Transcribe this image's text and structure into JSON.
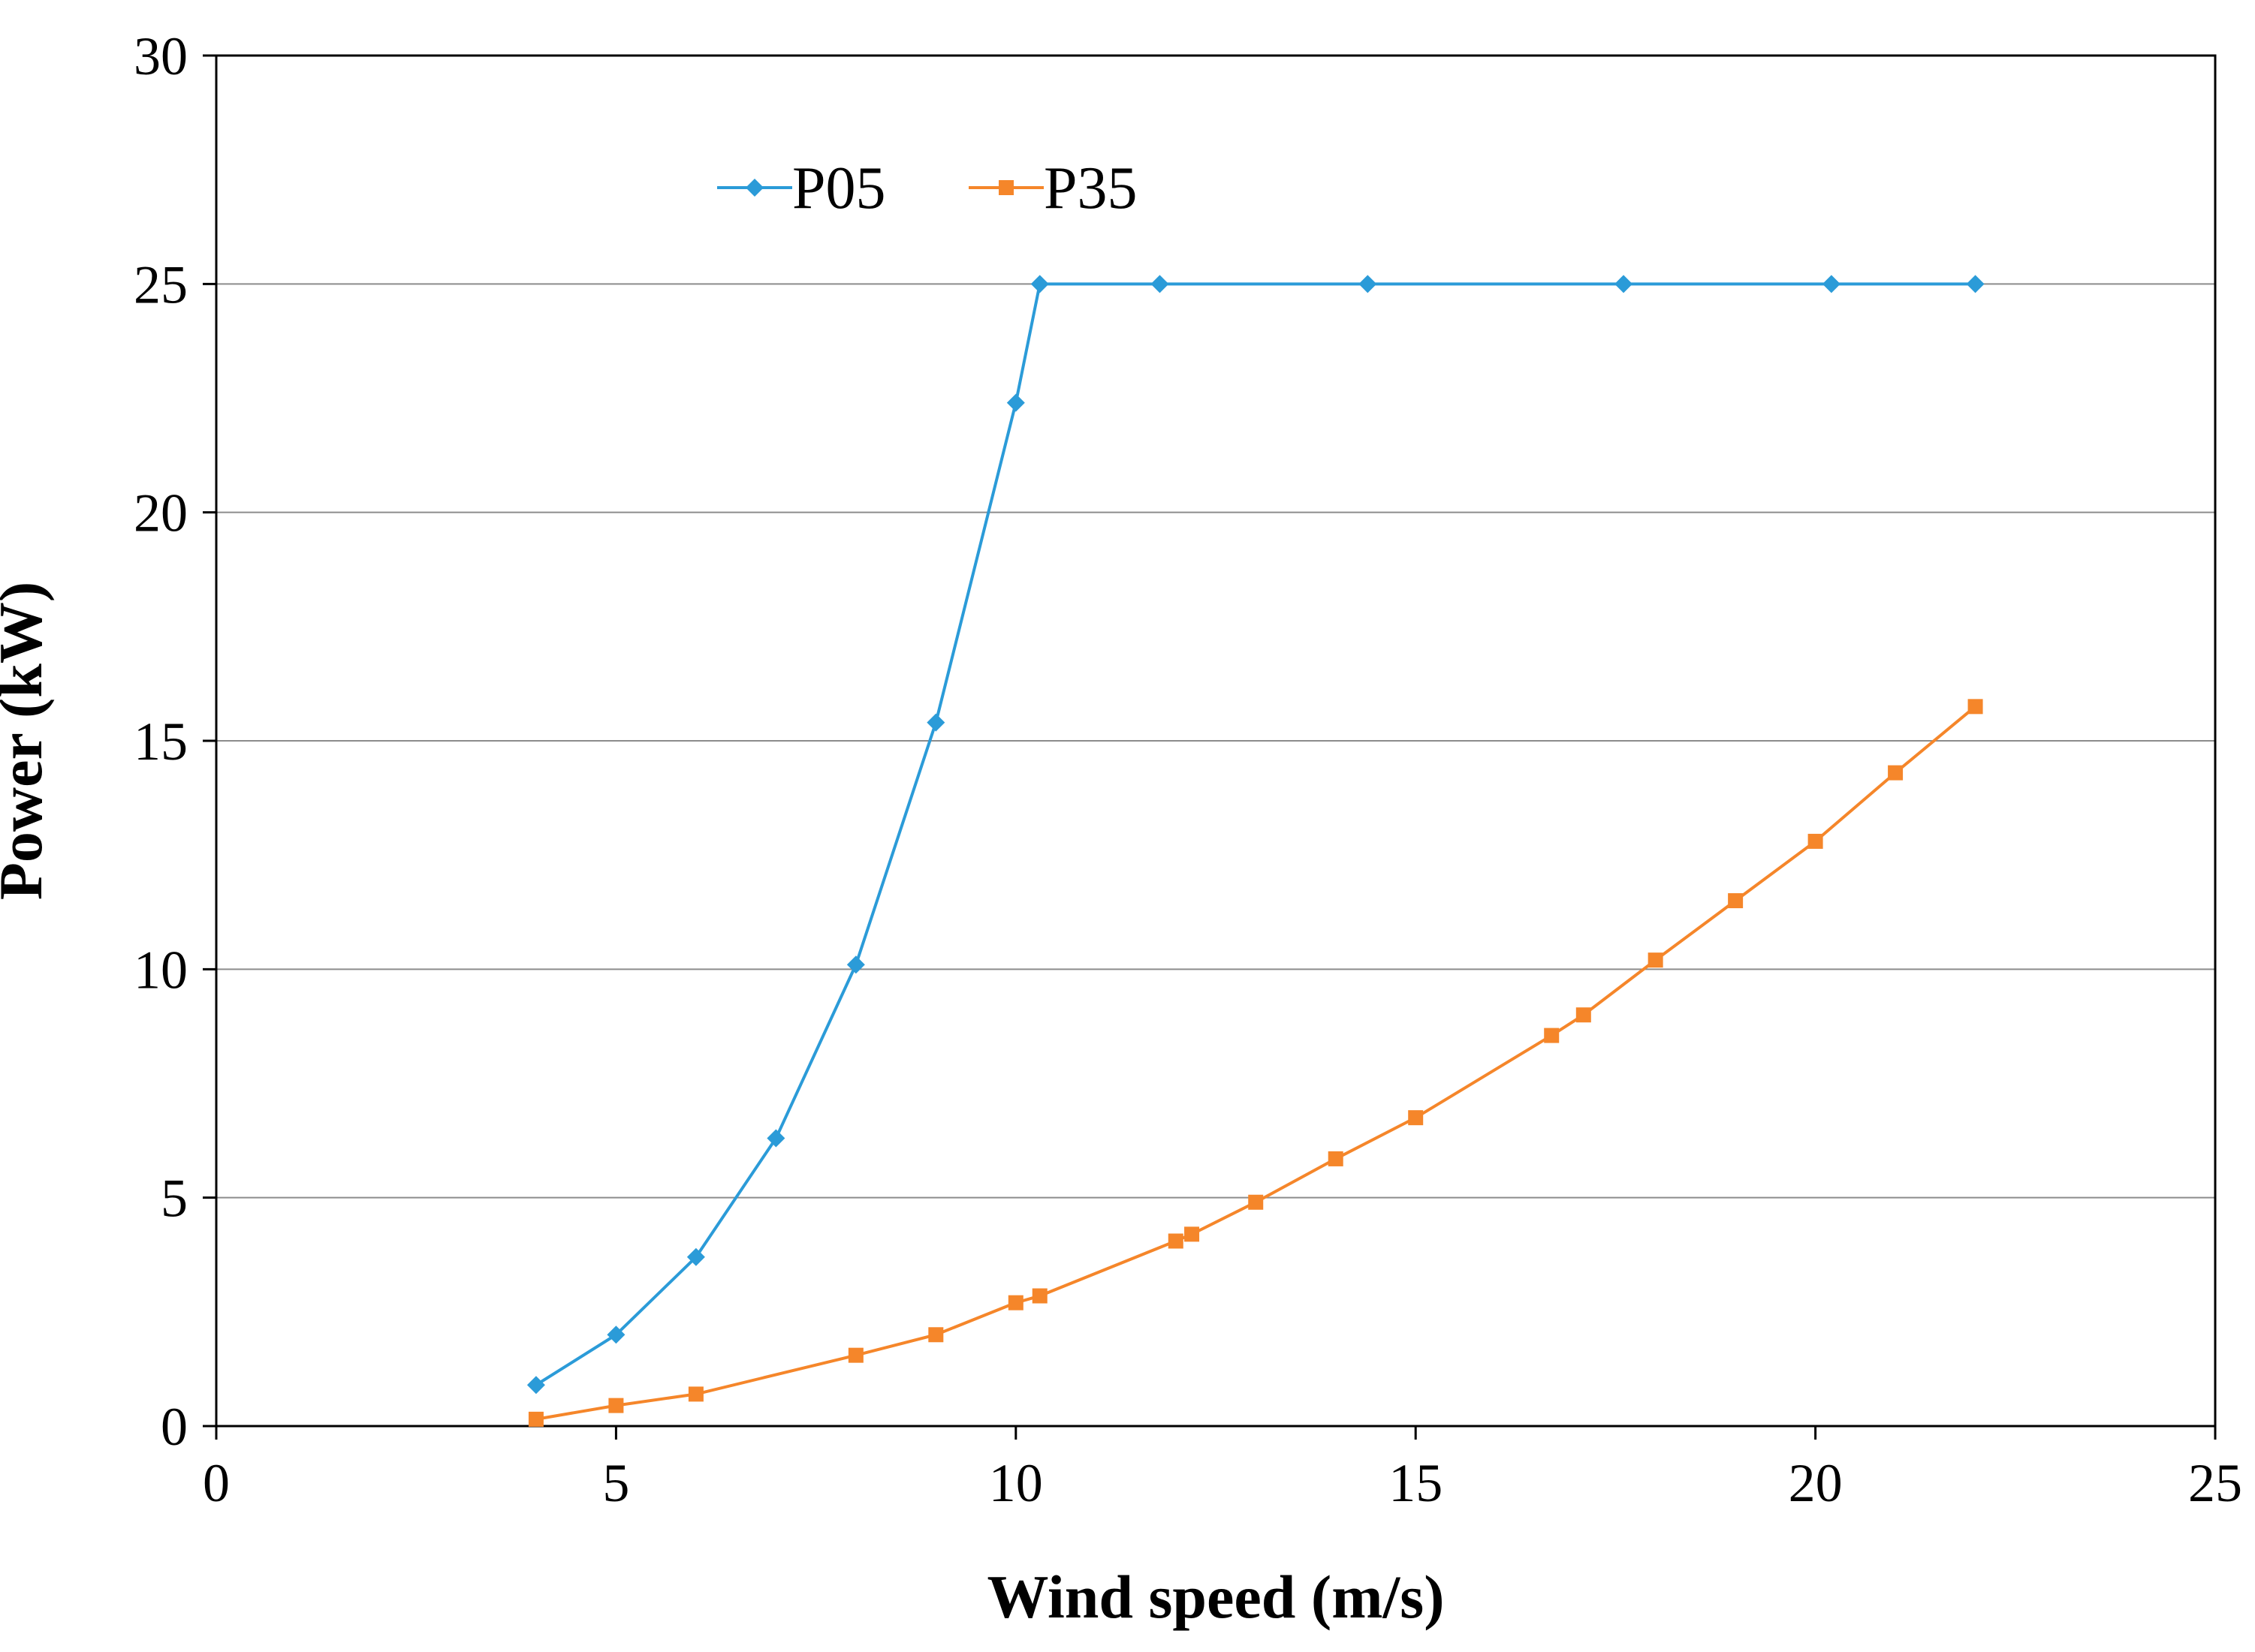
{
  "chart_data": {
    "type": "line",
    "title": "",
    "xlabel": "Wind speed (m/s)",
    "ylabel": "Power (kW)",
    "xlim": [
      0,
      25
    ],
    "ylim": [
      0,
      30
    ],
    "xticks": [
      0,
      5,
      10,
      15,
      20,
      25
    ],
    "yticks": [
      0,
      5,
      10,
      15,
      20,
      25,
      30
    ],
    "grid": "horizontal",
    "legend_position": "top-left",
    "series": [
      {
        "name": "P05",
        "color": "#2B9BD8",
        "marker": "diamond",
        "x": [
          4,
          5,
          6,
          7,
          8,
          9,
          10,
          10.3,
          11.8,
          14.4,
          17.6,
          20.2,
          22
        ],
        "y": [
          0.9,
          2.0,
          3.7,
          6.3,
          10.1,
          15.4,
          22.4,
          25,
          25,
          25,
          25,
          25,
          25
        ]
      },
      {
        "name": "P35",
        "color": "#F5862A",
        "marker": "square",
        "x": [
          4,
          5,
          6,
          8,
          9,
          10,
          10.3,
          12,
          12.2,
          13,
          14,
          15,
          16.7,
          17.1,
          18,
          19,
          20,
          21,
          22
        ],
        "y": [
          0.15,
          0.45,
          0.7,
          1.55,
          2.0,
          2.7,
          2.85,
          4.05,
          4.2,
          4.9,
          5.85,
          6.75,
          8.55,
          9.0,
          10.2,
          11.5,
          12.8,
          14.3,
          15.75
        ]
      }
    ]
  }
}
